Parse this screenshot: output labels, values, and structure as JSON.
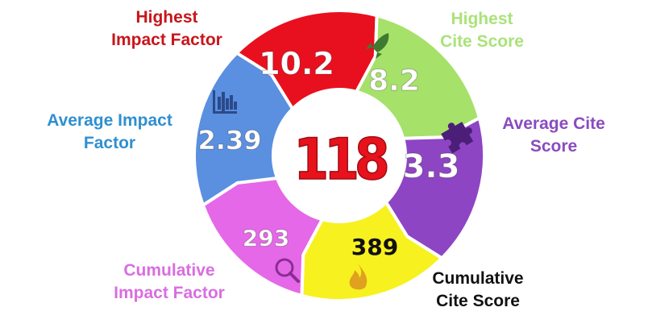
{
  "center": {
    "value": "118",
    "color": "#e8121c"
  },
  "segments": [
    {
      "id": "highest-impact-factor",
      "value": "10.2",
      "color": "#e8101e",
      "value_color": "#ffffff",
      "label_lines": [
        "Highest",
        "Impact Factor"
      ],
      "label_color": "#c8151b",
      "icon": ""
    },
    {
      "id": "highest-cite-score",
      "value": "8.2",
      "color": "#a6e16a",
      "value_color": "#ffffff",
      "label_lines": [
        "Highest",
        "Cite Score"
      ],
      "label_color": "#a9e37a",
      "icon": "rocket-icon"
    },
    {
      "id": "average-cite-score",
      "value": "3.3",
      "color": "#8d45c4",
      "value_color": "#ffffff",
      "label_lines": [
        "Average Cite",
        "Score"
      ],
      "label_color": "#8a4bbf",
      "icon": "puzzle-icon"
    },
    {
      "id": "cumulative-cite-score",
      "value": "389",
      "color": "#f7f11f",
      "value_color": "#111111",
      "label_lines": [
        "Cumulative",
        "Cite Score"
      ],
      "label_color": "#111111",
      "icon": "flame-icon"
    },
    {
      "id": "cumulative-impact-factor",
      "value": "293",
      "color": "#e568e8",
      "value_color": "#ffffff",
      "label_lines": [
        "Cumulative",
        "Impact Factor"
      ],
      "label_color": "#d86ee0",
      "icon": "magnifier-icon"
    },
    {
      "id": "average-impact-factor",
      "value": "2.39",
      "color": "#5b8fe0",
      "value_color": "#ffffff",
      "label_lines": [
        "Average Impact",
        "Factor"
      ],
      "label_color": "#2f8fd0",
      "icon": "bar-chart-icon"
    }
  ]
}
